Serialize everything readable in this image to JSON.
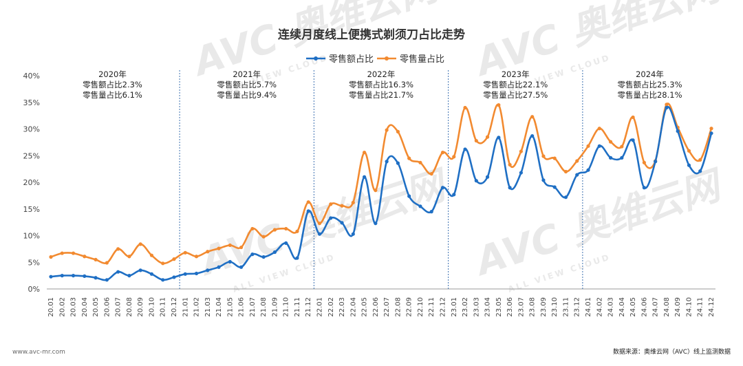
{
  "chart_data": {
    "type": "line",
    "title": "连续月度线上便携式剃须刀占比走势",
    "ylim": [
      0,
      40
    ],
    "yticks": [
      "0%",
      "5%",
      "10%",
      "15%",
      "20%",
      "25%",
      "30%",
      "35%",
      "40%"
    ],
    "categories": [
      "20.01",
      "20.02",
      "20.03",
      "20.04",
      "20.05",
      "20.06",
      "20.07",
      "20.08",
      "20.09",
      "20.10",
      "20.11",
      "20.12",
      "21.01",
      "21.02",
      "21.03",
      "21.04",
      "21.05",
      "21.06",
      "21.07",
      "21.08",
      "21.09",
      "21.10",
      "21.11",
      "21.12",
      "22.01",
      "22.02",
      "22.03",
      "22.04",
      "22.05",
      "22.06",
      "22.07",
      "22.08",
      "22.09",
      "22.10",
      "22.11",
      "22.12",
      "23.01",
      "23.02",
      "23.03",
      "23.04",
      "23.05",
      "23.06",
      "23.07",
      "23.08",
      "23.09",
      "23.10",
      "23.11",
      "23.12",
      "24.01",
      "24.02",
      "24.03",
      "24.04",
      "24.05",
      "24.06",
      "24.07",
      "24.08",
      "24.09",
      "24.10",
      "24.11",
      "24.12"
    ],
    "series": [
      {
        "name": "零售额占比",
        "color": "#1f6fc4",
        "values": [
          2.3,
          2.5,
          2.5,
          2.4,
          2.1,
          1.7,
          3.2,
          2.5,
          3.5,
          2.8,
          1.7,
          2.2,
          2.8,
          2.9,
          3.5,
          4.1,
          5.1,
          4.1,
          6.5,
          6.0,
          6.9,
          8.6,
          5.8,
          14.6,
          10.3,
          13.3,
          12.4,
          10.3,
          21.0,
          12.3,
          23.9,
          23.6,
          17.4,
          15.5,
          14.5,
          19.0,
          17.7,
          26.2,
          20.3,
          21.0,
          28.4,
          19.0,
          21.8,
          28.7,
          20.4,
          19.1,
          17.2,
          21.4,
          22.3,
          26.8,
          24.6,
          24.6,
          27.9,
          19.0,
          23.9,
          34.0,
          29.6,
          23.2,
          22.1,
          29.2
        ]
      },
      {
        "name": "零售量占比",
        "color": "#f28a30",
        "values": [
          6.0,
          6.7,
          6.7,
          6.1,
          5.5,
          4.9,
          7.5,
          6.1,
          8.4,
          6.3,
          4.8,
          5.6,
          6.8,
          6.1,
          7.0,
          7.6,
          8.2,
          7.8,
          11.3,
          9.8,
          11.1,
          11.3,
          10.8,
          16.3,
          12.3,
          15.9,
          15.6,
          16.2,
          25.6,
          18.5,
          29.8,
          29.5,
          24.5,
          23.7,
          21.6,
          25.6,
          24.8,
          34.0,
          27.8,
          28.5,
          34.5,
          23.3,
          25.8,
          32.3,
          24.9,
          24.5,
          22.0,
          24.0,
          26.8,
          30.1,
          27.6,
          26.7,
          32.2,
          23.7,
          24.0,
          34.6,
          30.3,
          25.9,
          24.2,
          30.1
        ]
      }
    ],
    "year_annotations": [
      {
        "year": "2020年",
        "amount": "零售额占比2.3%",
        "volume": "零售量占比6.1%"
      },
      {
        "year": "2021年",
        "amount": "零售额占比5.7%",
        "volume": "零售量占比9.4%"
      },
      {
        "year": "2022年",
        "amount": "零售额占比16.3%",
        "volume": "零售量占比21.7%"
      },
      {
        "year": "2023年",
        "amount": "零售额占比22.1%",
        "volume": "零售量占比27.5%"
      },
      {
        "year": "2024年",
        "amount": "零售额占比25.3%",
        "volume": "零售量占比28.1%"
      }
    ],
    "legend_position": "top-center"
  },
  "watermark": {
    "brand": "AVC 奥维云网",
    "sub": "ALL VIEW CLOUD"
  },
  "footer": {
    "left": "www.avc-mr.com",
    "right": "数据来源：奥维云网（AVC）线上监测数据"
  }
}
